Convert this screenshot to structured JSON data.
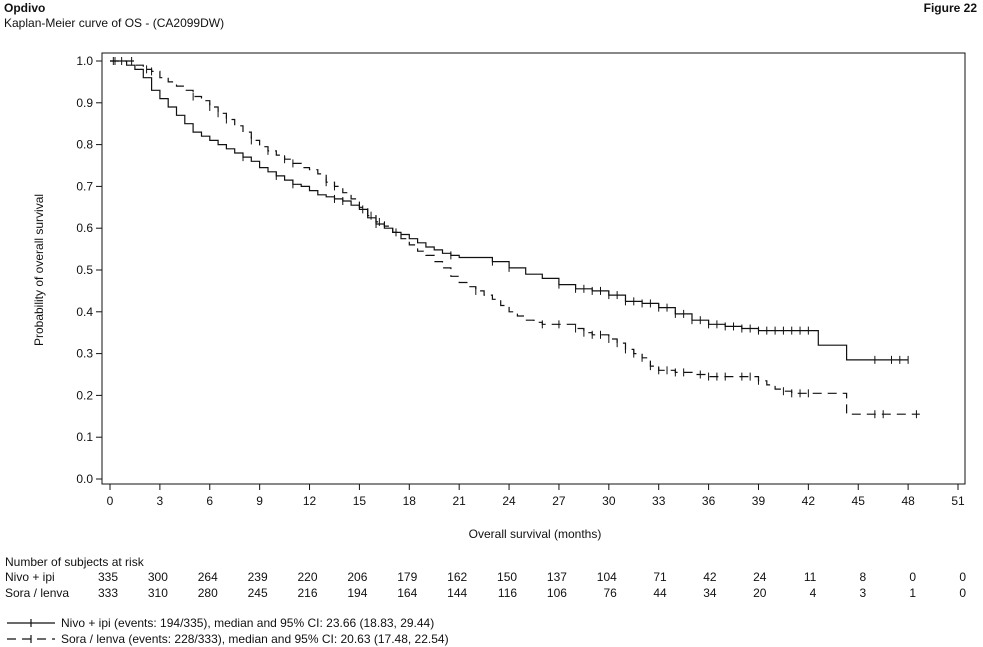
{
  "header": {
    "title": "Opdivo",
    "subtitle": "Kaplan-Meier curve of OS - (CA2099DW)",
    "figure_label": "Figure 22"
  },
  "risk_table": {
    "heading": "Number of subjects at risk",
    "rows": [
      {
        "label": "Nivo + ipi",
        "values": [
          "335",
          "300",
          "264",
          "239",
          "220",
          "206",
          "179",
          "162",
          "150",
          "137",
          "104",
          "71",
          "42",
          "24",
          "11",
          "8",
          "0",
          "0"
        ]
      },
      {
        "label": "Sora / lenva",
        "values": [
          "333",
          "310",
          "280",
          "245",
          "216",
          "194",
          "164",
          "144",
          "116",
          "106",
          "76",
          "44",
          "34",
          "20",
          "4",
          "3",
          "1",
          "0"
        ]
      }
    ]
  },
  "legend": [
    {
      "text": "Nivo + ipi (events: 194/335), median and 95% CI: 23.66 (18.83, 29.44)",
      "style": "solid"
    },
    {
      "text": "Sora / lenva (events: 228/333), median and 95% CI: 20.63 (17.48, 22.54)",
      "style": "dashed"
    }
  ],
  "chart_data": {
    "type": "line",
    "subtype": "kaplan-meier-step",
    "xlabel": "Overall survival (months)",
    "ylabel": "Probability of overall survival",
    "xlim": [
      0,
      51
    ],
    "ylim": [
      0,
      1.0
    ],
    "xticks": [
      "0",
      "3",
      "6",
      "9",
      "12",
      "15",
      "18",
      "21",
      "24",
      "27",
      "30",
      "33",
      "36",
      "39",
      "42",
      "45",
      "48",
      "51"
    ],
    "yticks": [
      "0.0",
      "0.1",
      "0.2",
      "0.3",
      "0.4",
      "0.5",
      "0.6",
      "0.7",
      "0.8",
      "0.9",
      "1.0"
    ],
    "grid": false,
    "series": [
      {
        "name": "Nivo + ipi",
        "color": "#111111",
        "style": "solid",
        "x": [
          0,
          0.5,
          1,
          1.5,
          2,
          2.5,
          3,
          3.5,
          4,
          4.5,
          5,
          5.5,
          6,
          6.5,
          7,
          7.5,
          8,
          8.5,
          9,
          9.5,
          10,
          10.5,
          11,
          11.5,
          12,
          12.5,
          13,
          13.5,
          14,
          14.5,
          15,
          15.5,
          16,
          16.5,
          17,
          17.5,
          18,
          18.5,
          19,
          19.5,
          20,
          20.5,
          21,
          22,
          23,
          24,
          25,
          26,
          27,
          28,
          29,
          30,
          31,
          32,
          33,
          34,
          35,
          36,
          37,
          38,
          39,
          40,
          41,
          42,
          42.6,
          44.3,
          45,
          46,
          47,
          48
        ],
        "y": [
          1.0,
          1.0,
          0.99,
          0.98,
          0.96,
          0.93,
          0.91,
          0.89,
          0.87,
          0.85,
          0.83,
          0.82,
          0.81,
          0.8,
          0.79,
          0.78,
          0.77,
          0.76,
          0.745,
          0.735,
          0.725,
          0.715,
          0.705,
          0.7,
          0.69,
          0.68,
          0.675,
          0.67,
          0.665,
          0.655,
          0.645,
          0.625,
          0.61,
          0.6,
          0.59,
          0.585,
          0.575,
          0.565,
          0.555,
          0.548,
          0.54,
          0.535,
          0.53,
          0.53,
          0.52,
          0.505,
          0.49,
          0.48,
          0.465,
          0.455,
          0.45,
          0.44,
          0.425,
          0.42,
          0.41,
          0.395,
          0.38,
          0.37,
          0.365,
          0.36,
          0.355,
          0.355,
          0.355,
          0.355,
          0.32,
          0.285,
          0.285,
          0.285,
          0.285,
          0.285
        ],
        "censor_x": [
          0.3,
          0.7,
          8,
          10,
          11,
          13.5,
          14,
          15.2,
          16,
          17.2,
          20.5,
          23,
          24,
          27,
          28,
          28.5,
          29,
          29.5,
          30,
          30.5,
          31,
          31.5,
          32,
          32.5,
          33,
          33.5,
          34,
          34.5,
          35,
          35.5,
          36,
          36.5,
          37,
          37.5,
          38,
          38.5,
          39,
          39.5,
          40,
          40.5,
          41,
          41.5,
          42,
          46,
          47,
          47.5,
          48
        ]
      },
      {
        "name": "Sora / lenva",
        "color": "#111111",
        "style": "dashed",
        "x": [
          0,
          1,
          1.5,
          2,
          2.5,
          3,
          3.5,
          4,
          4.5,
          5,
          5.5,
          6,
          6.5,
          7,
          7.5,
          8,
          8.5,
          9,
          9.5,
          10,
          10.5,
          11,
          11.5,
          12,
          12.5,
          13,
          13.5,
          14,
          14.5,
          15,
          15.5,
          16,
          16.5,
          17,
          17.5,
          18,
          18.5,
          19,
          19.5,
          20,
          20.5,
          21,
          21.5,
          22,
          22.5,
          23,
          23.5,
          24,
          24.5,
          25,
          25.5,
          26,
          27,
          28,
          28.5,
          29,
          30,
          30.5,
          31,
          31.5,
          32,
          32.5,
          33,
          34,
          35,
          36,
          37,
          38,
          39,
          39.5,
          40,
          40.5,
          41,
          42,
          43,
          44.3,
          45,
          46,
          47,
          48,
          48.7
        ],
        "y": [
          1.0,
          1.0,
          0.99,
          0.98,
          0.975,
          0.96,
          0.95,
          0.94,
          0.93,
          0.915,
          0.905,
          0.89,
          0.875,
          0.86,
          0.845,
          0.83,
          0.81,
          0.795,
          0.785,
          0.775,
          0.765,
          0.755,
          0.745,
          0.74,
          0.73,
          0.71,
          0.7,
          0.685,
          0.67,
          0.65,
          0.63,
          0.615,
          0.605,
          0.59,
          0.575,
          0.56,
          0.545,
          0.535,
          0.52,
          0.505,
          0.485,
          0.47,
          0.46,
          0.45,
          0.44,
          0.43,
          0.415,
          0.4,
          0.39,
          0.38,
          0.375,
          0.37,
          0.37,
          0.36,
          0.35,
          0.345,
          0.335,
          0.325,
          0.31,
          0.3,
          0.29,
          0.27,
          0.26,
          0.255,
          0.25,
          0.245,
          0.245,
          0.245,
          0.235,
          0.225,
          0.215,
          0.21,
          0.205,
          0.205,
          0.205,
          0.155,
          0.155,
          0.155,
          0.155,
          0.155,
          0.155
        ],
        "censor_x": [
          0.2,
          1.3,
          2.2,
          2.5,
          5,
          6,
          6.5,
          7,
          8.5,
          9.5,
          10.5,
          11,
          13,
          13.5,
          15.7,
          16.2,
          22,
          26,
          27,
          28,
          28.5,
          29,
          29.5,
          30,
          30.5,
          31,
          31.5,
          32,
          32.5,
          33,
          33.5,
          34,
          34.5,
          35.5,
          36,
          36.5,
          37,
          38,
          38.5,
          39,
          40.5,
          41,
          41.5,
          42,
          46,
          46.5,
          48.5
        ]
      }
    ]
  }
}
